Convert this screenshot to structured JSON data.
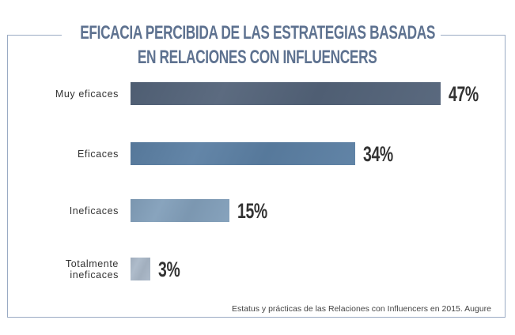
{
  "chart_data": {
    "type": "bar",
    "orientation": "horizontal",
    "title": "EFICACIA PERCIBIDA DE LAS ESTRATEGIAS BASADAS EN RELACIONES CON INFLUENCERS",
    "title_lines": [
      "EFICACIA PERCIBIDA DE LAS ESTRATEGIAS BASADAS",
      "EN RELACIONES CON INFLUENCERS"
    ],
    "categories": [
      "Muy eficaces",
      "Eficaces",
      "Ineficaces",
      "Totalmente ineficaces"
    ],
    "category_lines": [
      [
        "Muy eficaces"
      ],
      [
        "Eficaces"
      ],
      [
        "Ineficaces"
      ],
      [
        "Totalmente",
        "ineficaces"
      ]
    ],
    "values": [
      47,
      34,
      15,
      3
    ],
    "data_labels": [
      "47%",
      "34%",
      "15%",
      "3%"
    ],
    "colors": [
      "#536379",
      "#5b7fa3",
      "#829fba",
      "#aab8c8"
    ],
    "unit": "%",
    "xlim": [
      0,
      47
    ],
    "grid": false,
    "source": "Estatus y prácticas de las Relaciones con Influencers en 2015. Augure"
  }
}
